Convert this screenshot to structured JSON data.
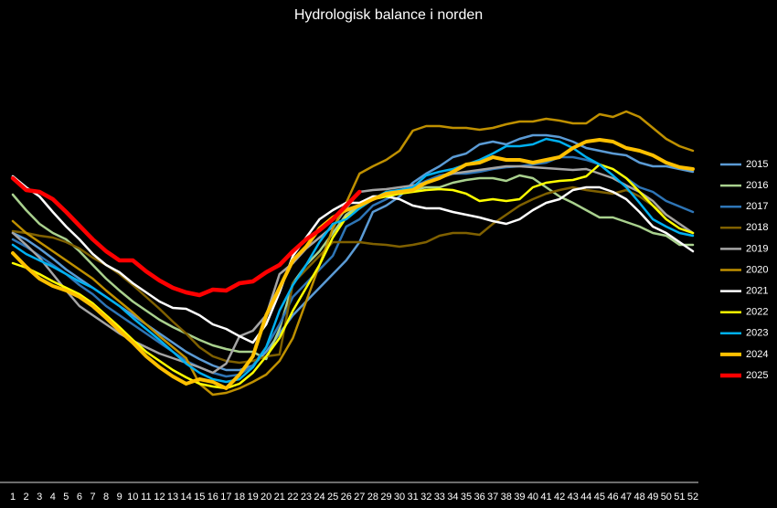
{
  "chart_data": {
    "type": "line",
    "title": "Hydrologisk balance i norden",
    "x": [
      1,
      2,
      3,
      4,
      5,
      6,
      7,
      8,
      9,
      10,
      11,
      12,
      13,
      14,
      15,
      16,
      17,
      18,
      19,
      20,
      21,
      22,
      23,
      24,
      25,
      26,
      27,
      28,
      29,
      30,
      31,
      32,
      33,
      34,
      35,
      36,
      37,
      38,
      39,
      40,
      41,
      42,
      43,
      44,
      45,
      46,
      47,
      48,
      49,
      50,
      51,
      52
    ],
    "xlim": [
      1,
      52
    ],
    "xticks": [
      1,
      2,
      3,
      4,
      5,
      6,
      7,
      8,
      9,
      10,
      11,
      12,
      13,
      14,
      15,
      16,
      17,
      18,
      19,
      20,
      21,
      22,
      23,
      24,
      25,
      26,
      27,
      28,
      29,
      30,
      31,
      32,
      33,
      34,
      35,
      36,
      37,
      38,
      39,
      40,
      41,
      42,
      43,
      44,
      45,
      46,
      47,
      48,
      49,
      50,
      51,
      52
    ],
    "ylim": [
      0,
      500
    ],
    "series": [
      {
        "name": "2015",
        "color": "#5b9bd5",
        "width": 2.5,
        "values": [
          273,
          266,
          256,
          245,
          233,
          223,
          213,
          203,
          193,
          183,
          173,
          163,
          153,
          143,
          135,
          128,
          123,
          123,
          128,
          143,
          163,
          183,
          198,
          213,
          228,
          243,
          263,
          296,
          303,
          313,
          328,
          338,
          346,
          356,
          360,
          370,
          373,
          370,
          376,
          380,
          380,
          378,
          373,
          366,
          363,
          360,
          358,
          350,
          346,
          346,
          343,
          340
        ]
      },
      {
        "name": "2016",
        "color": "#a9d18e",
        "width": 2.5,
        "values": [
          315,
          298,
          283,
          273,
          266,
          253,
          238,
          223,
          210,
          198,
          188,
          178,
          170,
          163,
          156,
          150,
          146,
          143,
          143,
          135,
          168,
          218,
          238,
          253,
          273,
          293,
          303,
          313,
          313,
          318,
          320,
          323,
          323,
          328,
          331,
          333,
          333,
          330,
          336,
          333,
          323,
          313,
          306,
          298,
          290,
          290,
          285,
          280,
          273,
          270,
          260,
          260
        ]
      },
      {
        "name": "2017",
        "color": "#2e75b6",
        "width": 2.5,
        "values": [
          266,
          258,
          248,
          238,
          228,
          216,
          206,
          193,
          183,
          173,
          163,
          153,
          143,
          133,
          126,
          120,
          116,
          118,
          128,
          148,
          173,
          203,
          218,
          233,
          248,
          280,
          288,
          303,
          310,
          318,
          323,
          330,
          336,
          338,
          338,
          340,
          343,
          345,
          346,
          348,
          350,
          356,
          356,
          353,
          348,
          343,
          333,
          323,
          318,
          308,
          302,
          296
        ]
      },
      {
        "name": "2018",
        "color": "#7f6000",
        "width": 2.5,
        "values": [
          275,
          273,
          270,
          268,
          263,
          256,
          246,
          238,
          228,
          216,
          203,
          190,
          176,
          163,
          148,
          138,
          133,
          131,
          133,
          138,
          140,
          218,
          233,
          248,
          263,
          263,
          263,
          261,
          260,
          258,
          260,
          263,
          270,
          273,
          273,
          271,
          283,
          293,
          303,
          310,
          316,
          320,
          323,
          320,
          318,
          316,
          320,
          313,
          303,
          293,
          283,
          273
        ]
      },
      {
        "name": "2019",
        "color": "#a5a5a5",
        "width": 2.5,
        "values": [
          273,
          260,
          246,
          228,
          210,
          193,
          183,
          173,
          163,
          155,
          148,
          141,
          136,
          131,
          126,
          120,
          130,
          160,
          166,
          183,
          228,
          240,
          256,
          268,
          280,
          300,
          318,
          320,
          321,
          323,
          325,
          328,
          333,
          338,
          340,
          342,
          344,
          346,
          346,
          345,
          344,
          343,
          342,
          343,
          338,
          333,
          325,
          318,
          308,
          293,
          283,
          273
        ]
      },
      {
        "name": "2020",
        "color": "#bf9000",
        "width": 2.5,
        "values": [
          286,
          273,
          263,
          253,
          243,
          233,
          223,
          210,
          198,
          186,
          173,
          160,
          148,
          136,
          108,
          96,
          98,
          103,
          110,
          118,
          133,
          158,
          198,
          238,
          278,
          306,
          338,
          346,
          353,
          363,
          385,
          390,
          390,
          388,
          388,
          386,
          388,
          392,
          395,
          395,
          398,
          396,
          393,
          393,
          403,
          400,
          406,
          400,
          388,
          376,
          368,
          363
        ]
      },
      {
        "name": "2021",
        "color": "#ffffff",
        "width": 2.5,
        "values": [
          335,
          323,
          313,
          296,
          280,
          266,
          250,
          238,
          230,
          218,
          208,
          198,
          191,
          190,
          183,
          173,
          168,
          160,
          153,
          173,
          208,
          248,
          268,
          288,
          298,
          306,
          306,
          313,
          313,
          310,
          303,
          300,
          300,
          296,
          293,
          290,
          286,
          283,
          288,
          298,
          306,
          310,
          320,
          323,
          323,
          318,
          310,
          296,
          280,
          273,
          263,
          253
        ]
      },
      {
        "name": "2022",
        "color": "#ffff00",
        "width": 2.5,
        "values": [
          240,
          235,
          228,
          220,
          213,
          206,
          196,
          183,
          170,
          156,
          143,
          133,
          123,
          115,
          108,
          105,
          103,
          108,
          120,
          138,
          158,
          188,
          213,
          238,
          268,
          290,
          300,
          310,
          313,
          316,
          318,
          320,
          321,
          320,
          316,
          308,
          310,
          308,
          310,
          323,
          328,
          330,
          331,
          335,
          348,
          343,
          333,
          318,
          303,
          288,
          278,
          273
        ]
      },
      {
        "name": "2023",
        "color": "#00b0f0",
        "width": 2.5,
        "values": [
          260,
          250,
          243,
          236,
          228,
          220,
          213,
          203,
          193,
          180,
          168,
          156,
          143,
          130,
          120,
          113,
          110,
          113,
          126,
          148,
          188,
          216,
          238,
          263,
          283,
          288,
          300,
          310,
          318,
          320,
          323,
          336,
          340,
          343,
          348,
          353,
          360,
          368,
          368,
          370,
          376,
          373,
          366,
          356,
          348,
          336,
          323,
          306,
          288,
          280,
          273,
          270
        ]
      },
      {
        "name": "2024",
        "color": "#ffc000",
        "width": 4,
        "values": [
          251,
          236,
          223,
          215,
          210,
          203,
          193,
          180,
          166,
          153,
          138,
          126,
          116,
          108,
          113,
          110,
          103,
          118,
          138,
          183,
          213,
          243,
          258,
          278,
          290,
          298,
          303,
          310,
          316,
          318,
          320,
          328,
          333,
          340,
          348,
          350,
          356,
          353,
          353,
          350,
          353,
          356,
          366,
          373,
          375,
          373,
          366,
          363,
          358,
          350,
          345,
          343
        ]
      },
      {
        "name": "2025",
        "color": "#ff0000",
        "width": 4.5,
        "values": [
          333,
          320,
          318,
          310,
          296,
          281,
          266,
          253,
          243,
          243,
          231,
          221,
          213,
          208,
          205,
          211,
          210,
          218,
          220,
          230,
          238,
          253,
          266,
          276,
          288,
          303,
          318,
          null,
          null,
          null,
          null,
          null,
          null,
          null,
          null,
          null,
          null,
          null,
          null,
          null,
          null,
          null,
          null,
          null,
          null,
          null,
          null,
          null,
          null,
          null,
          null,
          null
        ]
      }
    ]
  }
}
